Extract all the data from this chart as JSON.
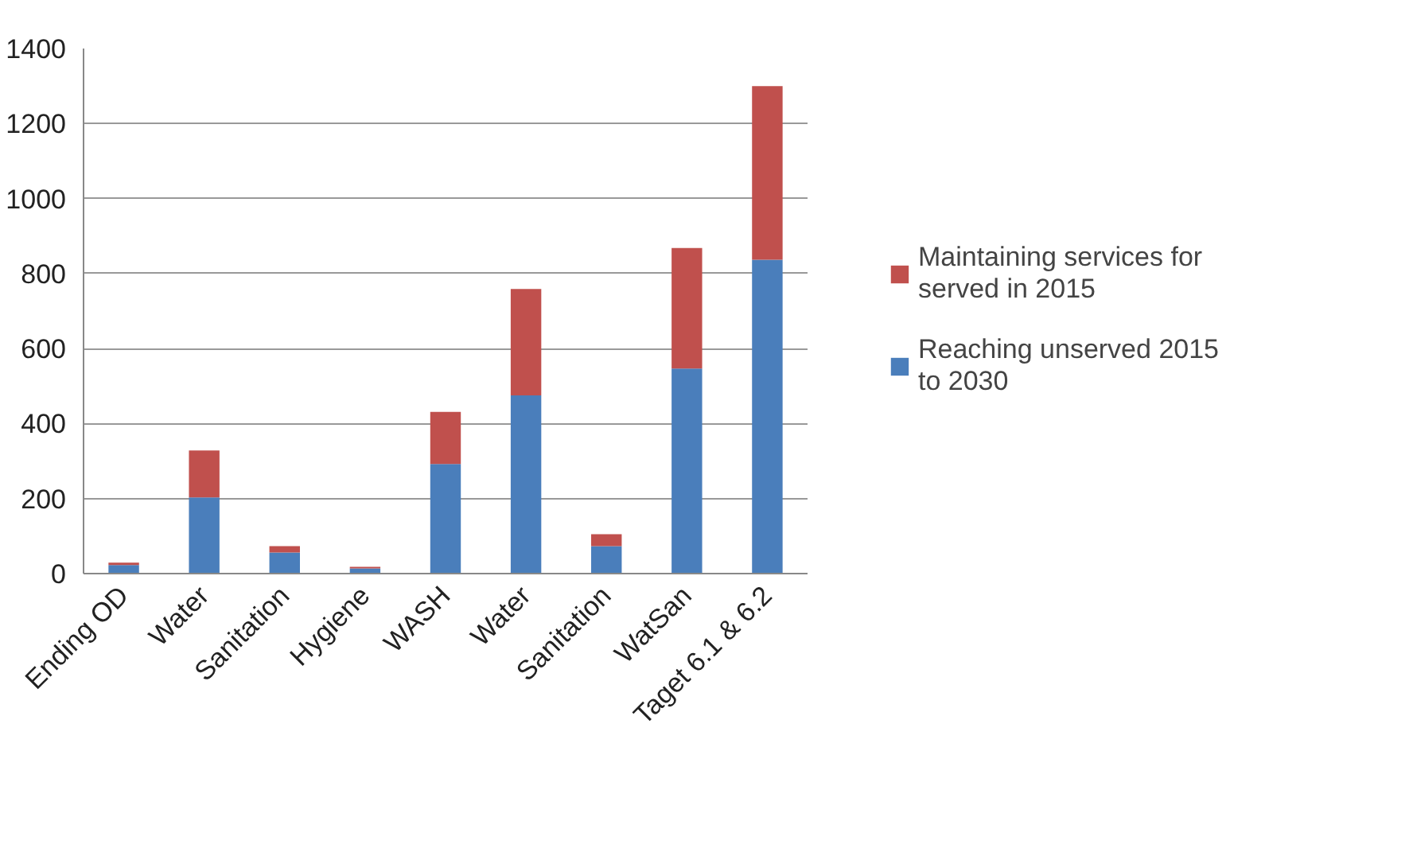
{
  "chart_data": {
    "type": "bar",
    "stacked": true,
    "categories": [
      "Ending OD",
      "Water",
      "Sanitation",
      "Hygiene",
      "WASH",
      "Water",
      "Sanitation",
      "WatSan",
      "Taget 6.1 & 6.2"
    ],
    "series": [
      {
        "name": "Reaching unserved 2015 to 2030",
        "color": "#4a7ebb",
        "values": [
          23,
          203,
          56,
          14,
          292,
          475,
          73,
          547,
          837
        ]
      },
      {
        "name": "Maintaining services for served in 2015",
        "color": "#c0504d",
        "values": [
          6,
          125,
          17,
          4,
          139,
          284,
          32,
          321,
          463
        ]
      }
    ],
    "ylim": [
      0,
      1400
    ],
    "yticks": [
      0,
      200,
      400,
      600,
      800,
      1000,
      1200,
      1400
    ],
    "grid": "y",
    "legend": "right"
  }
}
